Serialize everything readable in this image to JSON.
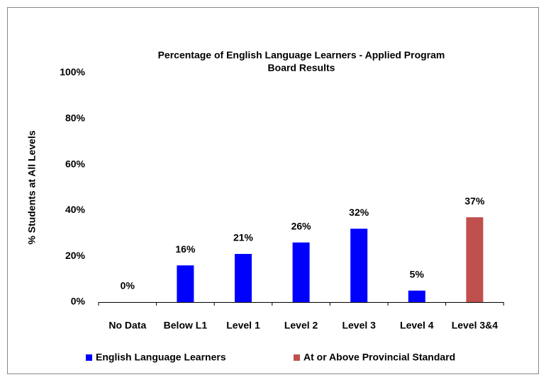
{
  "chart_data": {
    "type": "bar",
    "title": "Percentage of English Language Learners - Applied Program",
    "subtitle": "Board Results",
    "y_label": "% Students at All Levels",
    "categories": [
      "No Data",
      "Below L1",
      "Level 1",
      "Level 2",
      "Level 3",
      "Level 4",
      "Level 3&4"
    ],
    "series": [
      {
        "name": "English Language Learners",
        "color": "#0000ff",
        "values": [
          0,
          16,
          21,
          26,
          32,
          5,
          null
        ],
        "value_labels": [
          "0%",
          "16%",
          "21%",
          "26%",
          "32%",
          "5%",
          null
        ]
      },
      {
        "name": "At or Above Provincial Standard",
        "color": "#c0504d",
        "values": [
          null,
          null,
          null,
          null,
          null,
          null,
          37
        ],
        "value_labels": [
          null,
          null,
          null,
          null,
          null,
          null,
          "37%"
        ]
      }
    ],
    "ylim": [
      0,
      100
    ],
    "yticks": [
      {
        "value": 0,
        "label": "0%"
      },
      {
        "value": 20,
        "label": "20%"
      },
      {
        "value": 40,
        "label": "40%"
      },
      {
        "value": 60,
        "label": "60%"
      },
      {
        "value": 80,
        "label": "80%"
      },
      {
        "value": 100,
        "label": "100%"
      }
    ],
    "grid": false
  }
}
